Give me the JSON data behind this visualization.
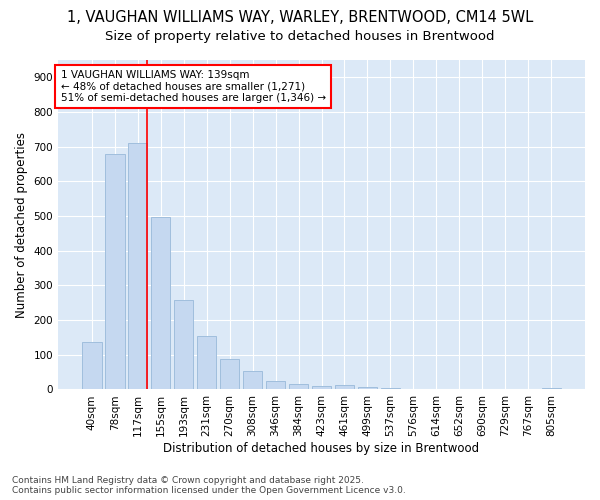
{
  "title_line1": "1, VAUGHAN WILLIAMS WAY, WARLEY, BRENTWOOD, CM14 5WL",
  "title_line2": "Size of property relative to detached houses in Brentwood",
  "xlabel": "Distribution of detached houses by size in Brentwood",
  "ylabel": "Number of detached properties",
  "categories": [
    "40sqm",
    "78sqm",
    "117sqm",
    "155sqm",
    "193sqm",
    "231sqm",
    "270sqm",
    "308sqm",
    "346sqm",
    "384sqm",
    "423sqm",
    "461sqm",
    "499sqm",
    "537sqm",
    "576sqm",
    "614sqm",
    "652sqm",
    "690sqm",
    "729sqm",
    "767sqm",
    "805sqm"
  ],
  "values": [
    138,
    678,
    711,
    497,
    257,
    153,
    87,
    52,
    24,
    17,
    10,
    12,
    8,
    4,
    2,
    1,
    1,
    1,
    0,
    0,
    5
  ],
  "bar_color": "#c5d8f0",
  "bar_edge_color": "#a0bedd",
  "vline_x_idx": 2,
  "vline_color": "red",
  "annotation_text": "1 VAUGHAN WILLIAMS WAY: 139sqm\n← 48% of detached houses are smaller (1,271)\n51% of semi-detached houses are larger (1,346) →",
  "annotation_box_color": "white",
  "annotation_box_edge": "red",
  "ylim": [
    0,
    950
  ],
  "yticks": [
    0,
    100,
    200,
    300,
    400,
    500,
    600,
    700,
    800,
    900
  ],
  "plot_bg_color": "#dce9f7",
  "fig_bg_color": "#ffffff",
  "grid_color": "white",
  "footnote": "Contains HM Land Registry data © Crown copyright and database right 2025.\nContains public sector information licensed under the Open Government Licence v3.0.",
  "title_fontsize": 10.5,
  "subtitle_fontsize": 9.5,
  "axis_label_fontsize": 8.5,
  "tick_fontsize": 7.5,
  "annotation_fontsize": 7.5,
  "footnote_fontsize": 6.5
}
